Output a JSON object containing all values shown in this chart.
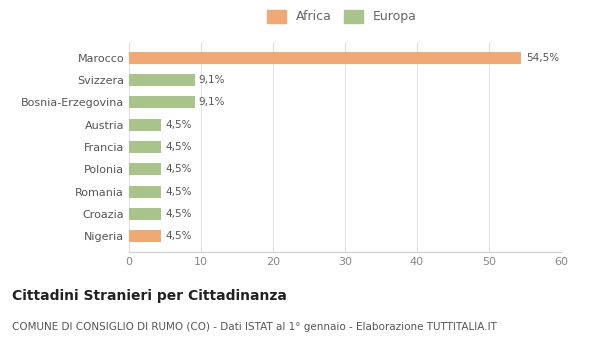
{
  "categories": [
    "Nigeria",
    "Croazia",
    "Romania",
    "Polonia",
    "Francia",
    "Austria",
    "Bosnia-Erzegovina",
    "Svizzera",
    "Marocco"
  ],
  "values": [
    4.5,
    4.5,
    4.5,
    4.5,
    4.5,
    4.5,
    9.1,
    9.1,
    54.5
  ],
  "labels": [
    "4,5%",
    "4,5%",
    "4,5%",
    "4,5%",
    "4,5%",
    "4,5%",
    "9,1%",
    "9,1%",
    "54,5%"
  ],
  "colors": [
    "#f0a875",
    "#a8c48a",
    "#a8c48a",
    "#a8c48a",
    "#a8c48a",
    "#a8c48a",
    "#a8c48a",
    "#a8c48a",
    "#f0a875"
  ],
  "africa_color": "#f0a875",
  "europa_color": "#a8c48a",
  "xlim": [
    0,
    60
  ],
  "xticks": [
    0,
    10,
    20,
    30,
    40,
    50,
    60
  ],
  "title": "Cittadini Stranieri per Cittadinanza",
  "subtitle": "COMUNE DI CONSIGLIO DI RUMO (CO) - Dati ISTAT al 1° gennaio - Elaborazione TUTTITALIA.IT",
  "bg_color": "#ffffff",
  "legend_africa": "Africa",
  "legend_europa": "Europa",
  "title_fontsize": 10,
  "subtitle_fontsize": 7.5,
  "label_fontsize": 7.5,
  "tick_fontsize": 8,
  "ytick_fontsize": 8
}
